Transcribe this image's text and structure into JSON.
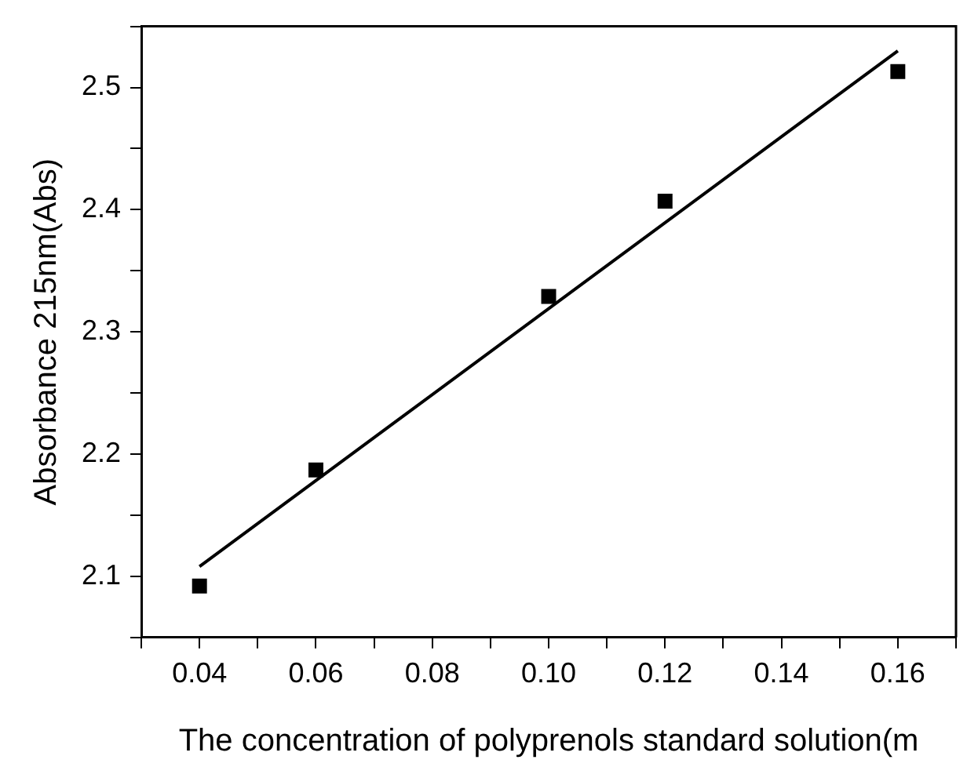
{
  "chart_data": {
    "type": "scatter",
    "xlabel": "The concentration of polyprenols standard solution(m",
    "ylabel": "Absorbance 215nm(Abs)",
    "xlim": [
      0.03,
      0.17
    ],
    "ylim": [
      2.05,
      2.55
    ],
    "xticks": [
      {
        "value": 0.03,
        "label": null
      },
      0.04,
      {
        "value": 0.05,
        "label": null
      },
      0.06,
      {
        "value": 0.07,
        "label": null
      },
      0.08,
      {
        "value": 0.09,
        "label": null
      },
      {
        "value": 0.1,
        "label": "0.10"
      },
      {
        "value": 0.11,
        "label": null
      },
      0.12,
      {
        "value": 0.13,
        "label": null
      },
      0.14,
      {
        "value": 0.15,
        "label": null
      },
      0.16,
      {
        "value": 0.17,
        "label": null
      }
    ],
    "yticks": [
      {
        "value": 2.05,
        "label": null
      },
      2.1,
      {
        "value": 2.15,
        "label": null
      },
      2.2,
      {
        "value": 2.25,
        "label": null
      },
      2.3,
      {
        "value": 2.35,
        "label": null
      },
      2.4,
      {
        "value": 2.45,
        "label": null
      },
      2.5,
      {
        "value": 2.55,
        "label": null
      }
    ],
    "grid": false,
    "legend": false,
    "marker": "square",
    "series": [
      {
        "color": "#000000",
        "x": [
          0.04,
          0.06,
          0.1,
          0.12,
          0.16
        ],
        "values": [
          2.092,
          2.187,
          2.329,
          2.407,
          2.513
        ]
      },
      {
        "type": "line",
        "color": "#000000",
        "x": [
          0.04,
          0.16
        ],
        "values": [
          2.108,
          2.53
        ],
        "marker": "none",
        "line_style": "solid"
      }
    ]
  }
}
